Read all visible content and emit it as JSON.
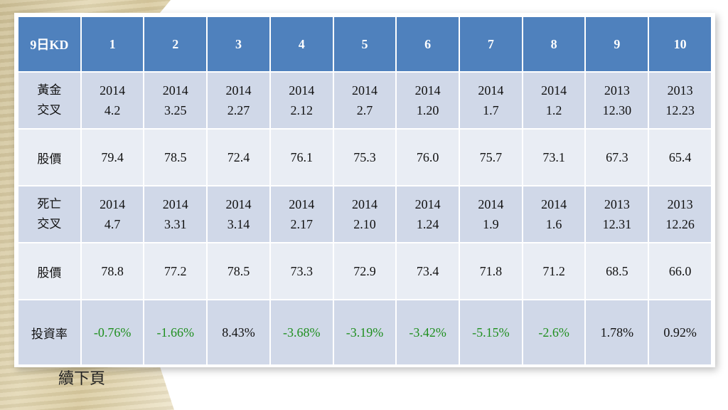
{
  "table": {
    "header": [
      "9日KD",
      "1",
      "2",
      "3",
      "4",
      "5",
      "6",
      "7",
      "8",
      "9",
      "10"
    ],
    "rows": [
      {
        "label": [
          "黃金",
          "交叉"
        ],
        "cells": [
          [
            "2014",
            "4.2"
          ],
          [
            "2014",
            "3.25"
          ],
          [
            "2014",
            "2.27"
          ],
          [
            "2014",
            "2.12"
          ],
          [
            "2014",
            "2.7"
          ],
          [
            "2014",
            "1.20"
          ],
          [
            "2014",
            "1.7"
          ],
          [
            "2014",
            "1.2"
          ],
          [
            "2013",
            "12.30"
          ],
          [
            "2013",
            "12.23"
          ]
        ]
      },
      {
        "label": [
          "股價"
        ],
        "cells": [
          [
            "79.4"
          ],
          [
            "78.5"
          ],
          [
            "72.4"
          ],
          [
            "76.1"
          ],
          [
            "75.3"
          ],
          [
            "76.0"
          ],
          [
            "75.7"
          ],
          [
            "73.1"
          ],
          [
            "67.3"
          ],
          [
            "65.4"
          ]
        ]
      },
      {
        "label": [
          "死亡",
          "交叉"
        ],
        "cells": [
          [
            "2014",
            "4.7"
          ],
          [
            "2014",
            "3.31"
          ],
          [
            "2014",
            "3.14"
          ],
          [
            "2014",
            "2.17"
          ],
          [
            "2014",
            "2.10"
          ],
          [
            "2014",
            "1.24"
          ],
          [
            "2014",
            "1.9"
          ],
          [
            "2014",
            "1.6"
          ],
          [
            "2013",
            "12.31"
          ],
          [
            "2013",
            "12.26"
          ]
        ]
      },
      {
        "label": [
          "股價"
        ],
        "cells": [
          [
            "78.8"
          ],
          [
            "77.2"
          ],
          [
            "78.5"
          ],
          [
            "73.3"
          ],
          [
            "72.9"
          ],
          [
            "73.4"
          ],
          [
            "71.8"
          ],
          [
            "71.2"
          ],
          [
            "68.5"
          ],
          [
            "66.0"
          ]
        ]
      },
      {
        "label": [
          "投資率"
        ],
        "cells": [
          [
            "-0.76%"
          ],
          [
            "-1.66%"
          ],
          [
            "8.43%"
          ],
          [
            "-3.68%"
          ],
          [
            "-3.19%"
          ],
          [
            "-3.42%"
          ],
          [
            "-5.15%"
          ],
          [
            "-2.6%"
          ],
          [
            "1.78%"
          ],
          [
            "0.92%"
          ]
        ],
        "cell_colors": [
          "#1f8f1f",
          "#1f8f1f",
          "#111111",
          "#1f8f1f",
          "#1f8f1f",
          "#1f8f1f",
          "#1f8f1f",
          "#1f8f1f",
          "#111111",
          "#111111"
        ]
      }
    ]
  },
  "footer": {
    "note": "續下頁"
  },
  "colors": {
    "header_bg": "#4f81bd",
    "row_dark": "#d0d8e8",
    "row_light": "#e9edf4",
    "negative": "#1f8f1f"
  }
}
